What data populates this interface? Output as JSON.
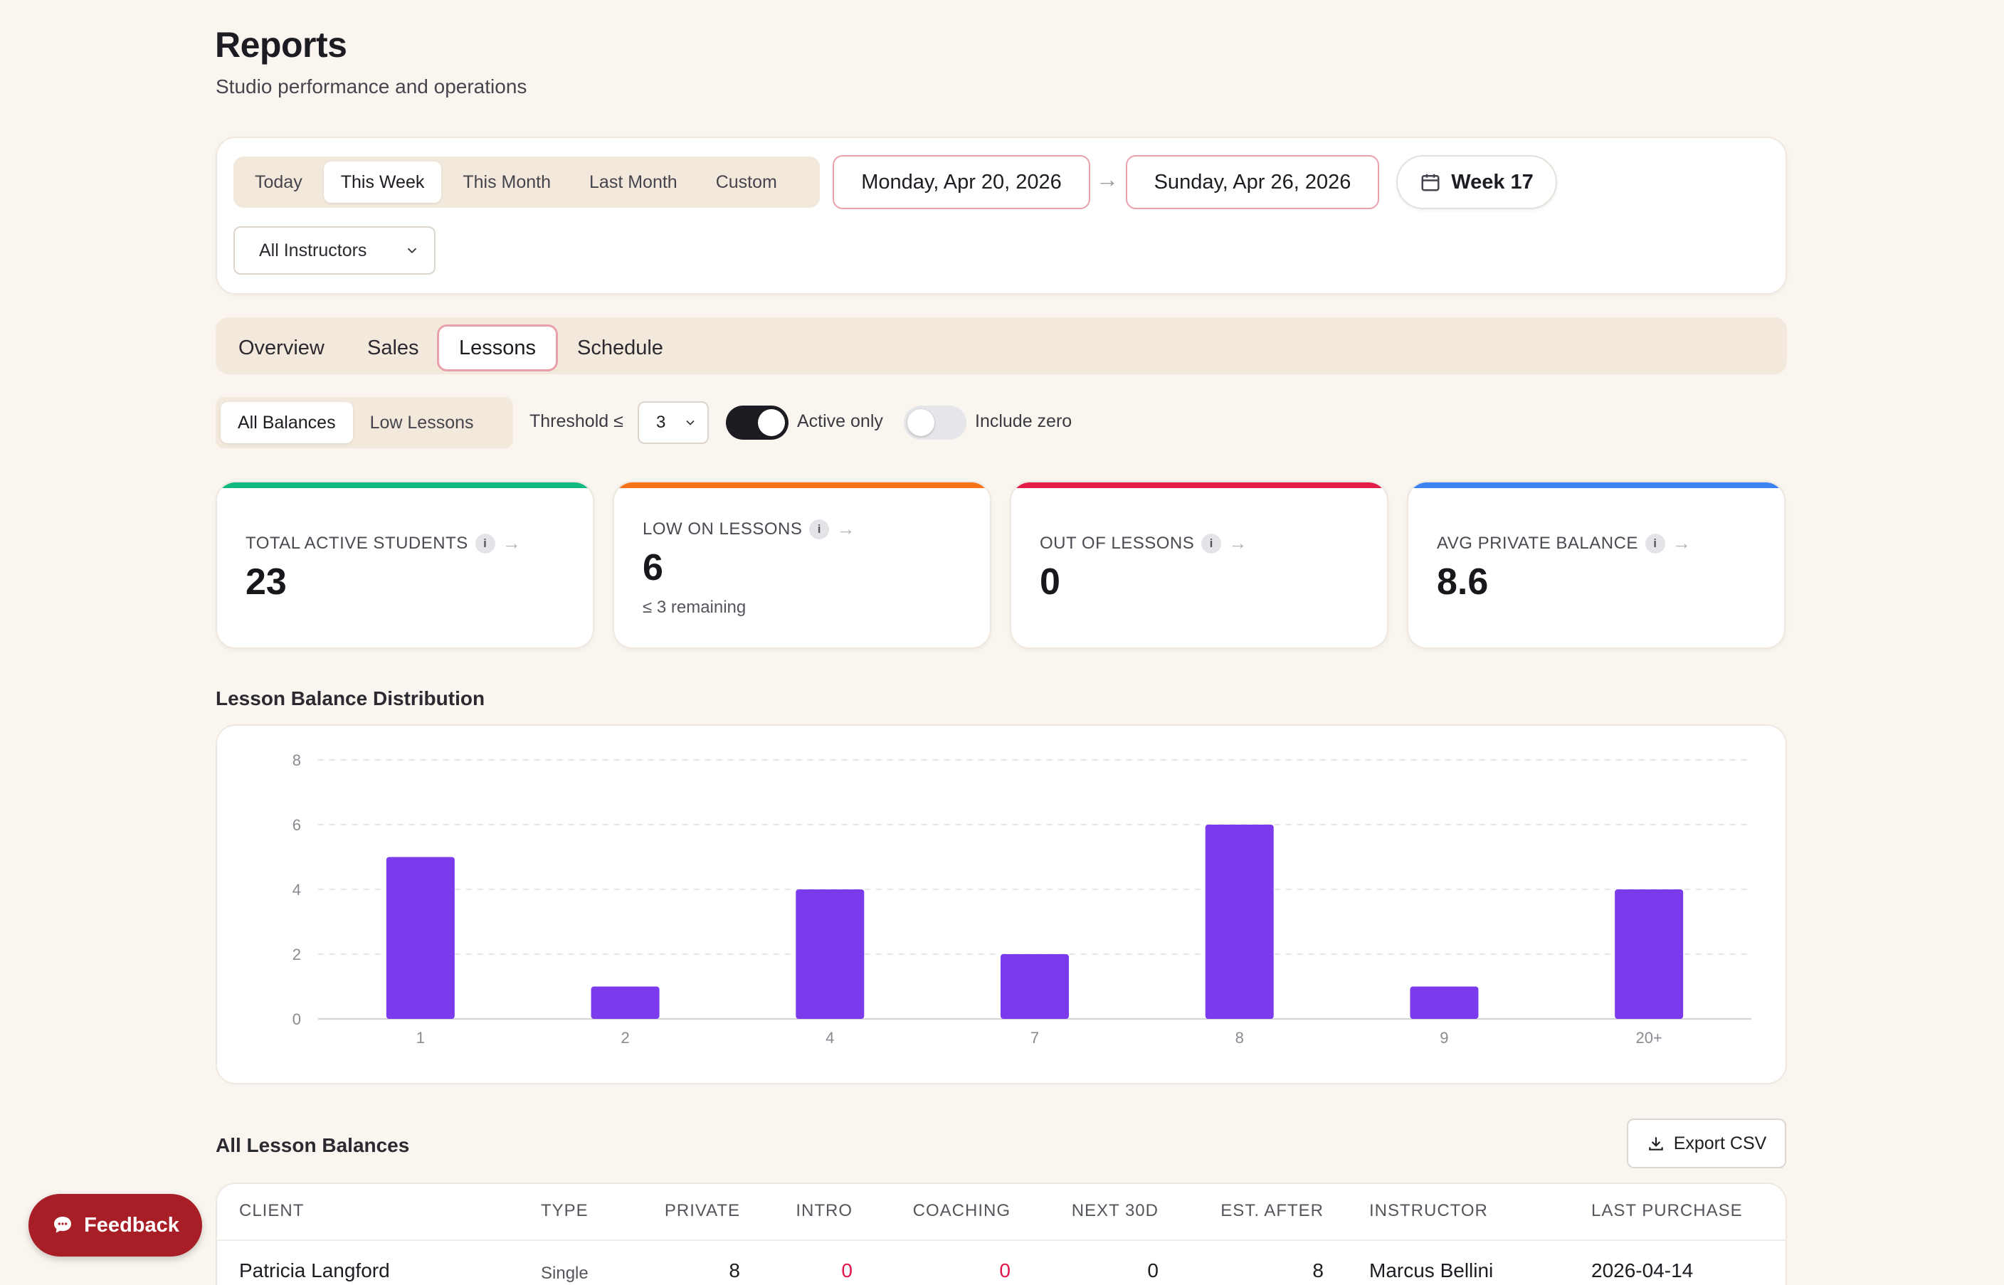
{
  "header": {
    "title": "Reports",
    "subtitle": "Studio performance and operations"
  },
  "filters": {
    "ranges": [
      "Today",
      "This Week",
      "This Month",
      "Last Month",
      "Custom"
    ],
    "active_range": "This Week",
    "start_date": "Monday, Apr 20, 2026",
    "arrow": "→",
    "end_date": "Sunday, Apr 26, 2026",
    "week_label": "Week 17",
    "instructor_select": "All Instructors"
  },
  "tabs": [
    "Overview",
    "Sales",
    "Lessons",
    "Schedule"
  ],
  "active_tab": "Lessons",
  "lesson_controls": {
    "views": [
      "All Balances",
      "Low Lessons"
    ],
    "active_view": "All Balances",
    "threshold_label": "Threshold ≤",
    "threshold_value": "3",
    "active_only_label": "Active only",
    "active_only": true,
    "include_zero_label": "Include zero",
    "include_zero": false
  },
  "kpis": [
    {
      "label": "TOTAL ACTIVE STUDENTS",
      "value": "23",
      "sub": "",
      "color": "#10b981"
    },
    {
      "label": "LOW ON LESSONS",
      "value": "6",
      "sub": "≤ 3 remaining",
      "color": "#f97316"
    },
    {
      "label": "OUT OF LESSONS",
      "value": "0",
      "sub": "",
      "color": "#e11d48"
    },
    {
      "label": "AVG PRIVATE BALANCE",
      "value": "8.6",
      "sub": "",
      "color": "#3b82f6"
    }
  ],
  "kpi_info_glyph": "i",
  "kpi_arrow": "→",
  "chart_section_title": "Lesson Balance Distribution",
  "chart_data": {
    "type": "bar",
    "categories": [
      "1",
      "2",
      "4",
      "7",
      "8",
      "9",
      "20+"
    ],
    "values": [
      5,
      1,
      4,
      2,
      6,
      1,
      4
    ],
    "ylim": [
      0,
      8
    ],
    "yticks": [
      0,
      2,
      4,
      6,
      8
    ],
    "grid": true,
    "bar_color": "#7c3aed",
    "title": "",
    "xlabel": "",
    "ylabel": ""
  },
  "table": {
    "title": "All Lesson Balances",
    "export_label": "Export CSV",
    "columns": [
      "CLIENT",
      "TYPE",
      "PRIVATE",
      "INTRO",
      "COACHING",
      "NEXT 30D",
      "EST. AFTER",
      "INSTRUCTOR",
      "LAST PURCHASE"
    ],
    "rows": [
      {
        "client": "Patricia Langford",
        "type": "Single",
        "private": "8",
        "intro": "0",
        "coaching": "0",
        "next30": "0",
        "est_after": "8",
        "instructor": "Marcus Bellini",
        "last_purchase": "2026-04-14"
      }
    ]
  },
  "feedback_label": "Feedback",
  "icons": {
    "calendar": "calendar-icon",
    "chevron": "chevron-down-icon",
    "download": "download-icon",
    "chat": "chat-bubble-icon"
  }
}
